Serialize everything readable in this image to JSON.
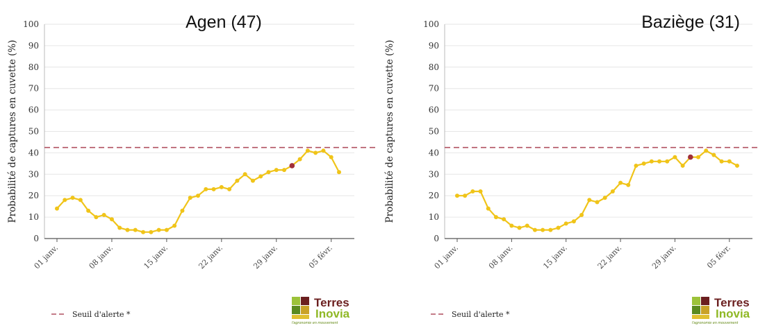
{
  "chart_data": [
    {
      "type": "line",
      "title": "Agen (47)",
      "ylabel": "Probabilité de captures en cuvette (%)",
      "ylim": [
        0,
        100
      ],
      "yticks": [
        0,
        10,
        20,
        30,
        40,
        50,
        60,
        70,
        80,
        90,
        100
      ],
      "x_ticks": [
        "01 janv.",
        "08 janv.",
        "15 janv.",
        "22 janv.",
        "29 janv.",
        "05 févr."
      ],
      "x_tick_days": [
        1,
        8,
        15,
        22,
        29,
        36
      ],
      "xlim": [
        1,
        37
      ],
      "threshold": {
        "name": "Seuil d'alerte *",
        "value": 42.5
      },
      "highlight_day": 31,
      "series": [
        {
          "days": [
            1,
            2,
            3,
            4,
            5,
            6,
            7,
            8,
            9,
            10,
            11,
            12,
            13,
            14,
            15,
            16,
            17,
            18,
            19,
            20,
            21,
            22,
            23,
            24,
            25,
            26,
            27,
            28,
            29,
            30,
            31,
            32,
            33,
            34,
            35,
            36,
            37
          ],
          "values": [
            14,
            18,
            19,
            18,
            13,
            10,
            11,
            9,
            5,
            4,
            4,
            3,
            3,
            4,
            4,
            6,
            13,
            19,
            20,
            23,
            23,
            24,
            23,
            27,
            30,
            27,
            29,
            31,
            32,
            32,
            34,
            37,
            41,
            40,
            41,
            38,
            31
          ]
        }
      ],
      "grid": "horizontal",
      "legend_position": "bottom-left",
      "colors": {
        "line": "#f0c419",
        "highlight": "#a0303a",
        "threshold": "#b05060",
        "grid": "#e6e6e6"
      }
    },
    {
      "type": "line",
      "title": "Baziège (31)",
      "ylabel": "Probabilité de captures en cuvette (%)",
      "ylim": [
        0,
        100
      ],
      "yticks": [
        0,
        10,
        20,
        30,
        40,
        50,
        60,
        70,
        80,
        90,
        100
      ],
      "x_ticks": [
        "01 janv.",
        "08 janv.",
        "15 janv.",
        "22 janv.",
        "29 janv.",
        "05 févr."
      ],
      "x_tick_days": [
        1,
        8,
        15,
        22,
        29,
        36
      ],
      "xlim": [
        1,
        37
      ],
      "threshold": {
        "name": "Seuil d'alerte *",
        "value": 42.5
      },
      "highlight_day": 31,
      "series": [
        {
          "days": [
            1,
            2,
            3,
            4,
            5,
            6,
            7,
            8,
            9,
            10,
            11,
            12,
            13,
            14,
            15,
            16,
            17,
            18,
            19,
            20,
            21,
            22,
            23,
            24,
            25,
            26,
            27,
            28,
            29,
            30,
            31,
            32,
            33,
            34,
            35,
            36,
            37
          ],
          "values": [
            20,
            20,
            22,
            22,
            14,
            10,
            9,
            6,
            5,
            6,
            4,
            4,
            4,
            5,
            7,
            8,
            11,
            18,
            17,
            19,
            22,
            26,
            25,
            34,
            35,
            36,
            36,
            36,
            38,
            34,
            38,
            38,
            41,
            39,
            36,
            36,
            34
          ]
        }
      ],
      "grid": "horizontal",
      "legend_position": "bottom-left",
      "colors": {
        "line": "#f0c419",
        "highlight": "#a0303a",
        "threshold": "#b05060",
        "grid": "#e6e6e6"
      }
    }
  ],
  "logo": {
    "line1": "Terres",
    "line2": "Inovia",
    "tagline": "l'agronomie en mouvement"
  }
}
